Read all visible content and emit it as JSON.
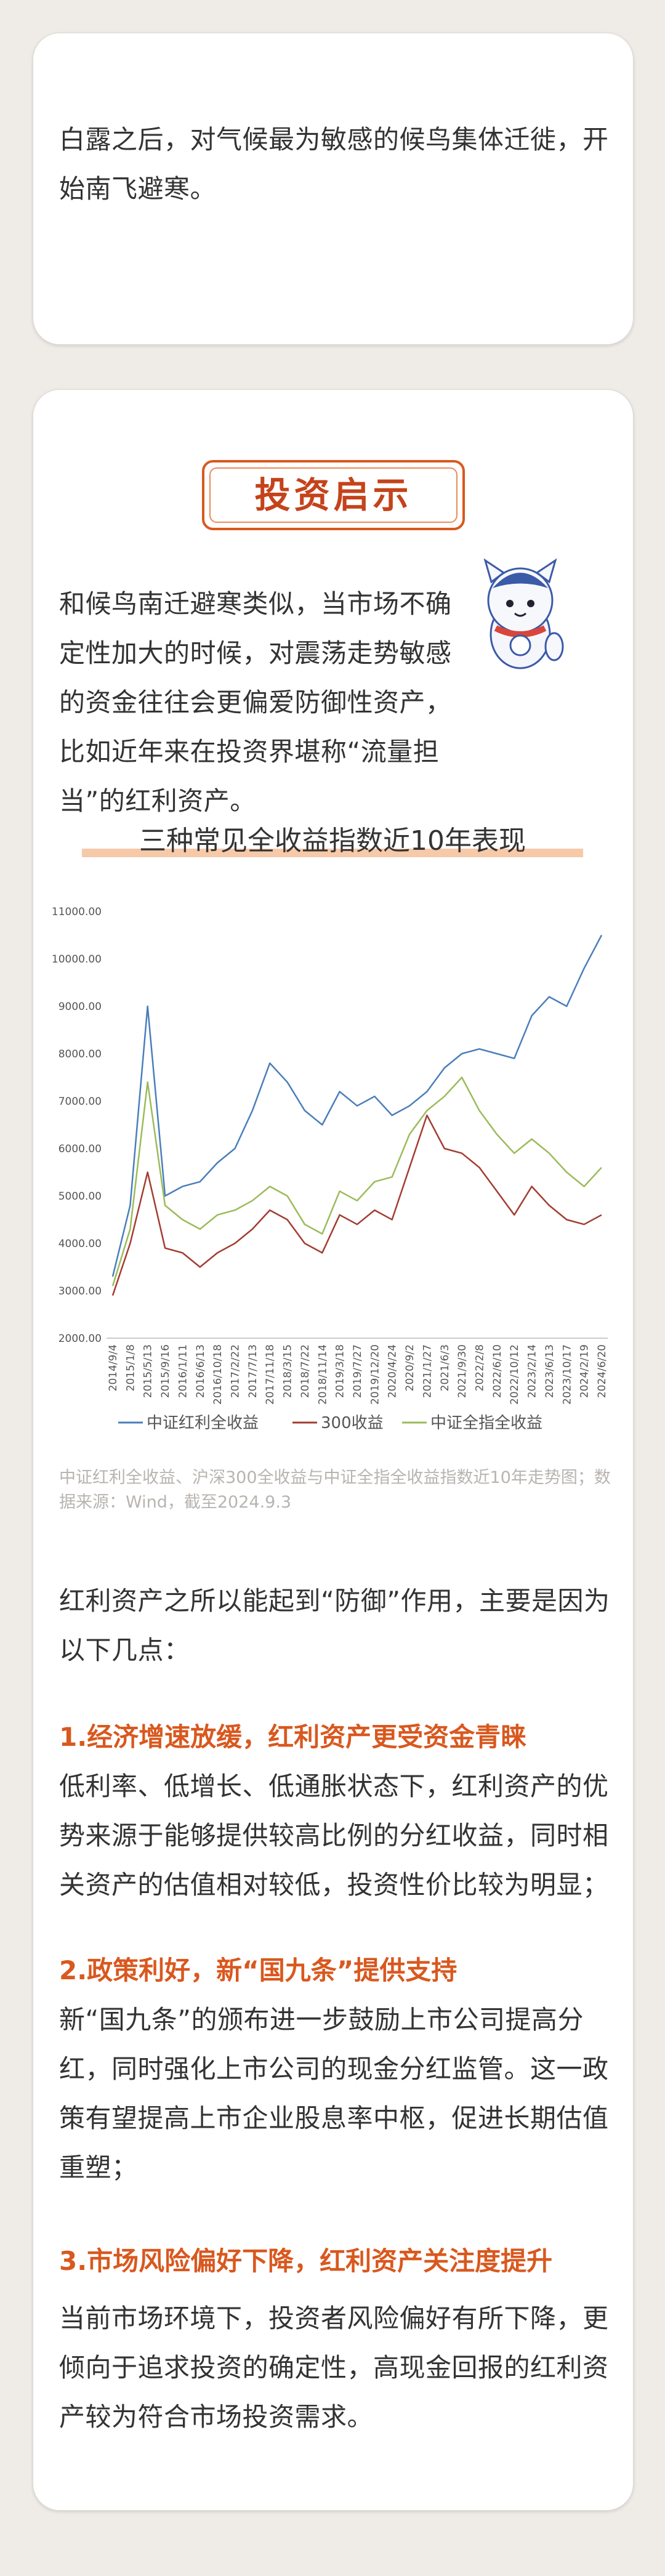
{
  "intro": {
    "text": "白露之后，对气候最为敏感的候鸟集体迁徙，开始南飞避寒。"
  },
  "section": {
    "badge": "投资启示",
    "paragraph": "和候鸟南迁避寒类似，当市场不确定性加大的时候，对震荡走势敏感的资金往往会更偏爱防御性资产，比如近年来在投资界堪称“流量担当”的红利资产。",
    "caption": "中证红利全收益、沪深300全收益与中证全指全收益指数近10年走势图；数据来源：Wind，截至2024.9.3",
    "lead": "红利资产之所以能起到“防御”作用，主要是因为以下几点：",
    "points": [
      {
        "heading": "1.经济增速放缓，红利资产更受资金青睐",
        "text": "低利率、低增长、低通胀状态下，红利资产的优势来源于能够提供较高比例的分红收益，同时相关资产的估值相对较低，投资性价比较为明显；"
      },
      {
        "heading": "2.政策利好，新“国九条”提供支持",
        "text": "新“国九条”的颁布进一步鼓励上市公司提高分红，同时强化上市公司的现金分红监管。这一政策有望提高上市企业股息率中枢，促进长期估值重塑；"
      },
      {
        "heading": "3.市场风险偏好下降，红利资产关注度提升",
        "text": "当前市场环境下，投资者风险偏好有所下降，更倾向于追求投资的确定性，高现金回报的红利资产较为符合市场投资需求。"
      }
    ]
  },
  "chart_data": {
    "type": "line",
    "title": "三种常见全收益指数近10年表现",
    "categories": [
      "2014/9/4",
      "2015/1/8",
      "2015/5/13",
      "2015/9/16",
      "2016/1/11",
      "2016/6/13",
      "2016/10/18",
      "2017/2/22",
      "2017/7/13",
      "2017/11/18",
      "2018/3/15",
      "2018/7/22",
      "2018/11/14",
      "2019/3/18",
      "2019/7/27",
      "2019/12/20",
      "2020/4/24",
      "2020/9/2",
      "2021/1/27",
      "2021/6/3",
      "2021/9/30",
      "2022/2/8",
      "2022/6/10",
      "2022/10/12",
      "2023/2/14",
      "2023/6/13",
      "2023/10/17",
      "2024/2/19",
      "2024/6/20"
    ],
    "series": [
      {
        "name": "中证红利全收益",
        "color": "#4a7ebb",
        "values": [
          3300,
          4800,
          9000,
          5000,
          5200,
          5300,
          5700,
          6000,
          6800,
          7800,
          7400,
          6800,
          6500,
          7200,
          6900,
          7100,
          6700,
          6900,
          7200,
          7700,
          8000,
          8100,
          8000,
          7900,
          8800,
          9200,
          9000,
          9800,
          10500
        ]
      },
      {
        "name": "300收益",
        "color": "#a33c32",
        "values": [
          2900,
          4000,
          5500,
          3900,
          3800,
          3500,
          3800,
          4000,
          4300,
          4700,
          4500,
          4000,
          3800,
          4600,
          4400,
          4700,
          4500,
          5600,
          6700,
          6000,
          5900,
          5600,
          5100,
          4600,
          5200,
          4800,
          4500,
          4400,
          4600
        ]
      },
      {
        "name": "中证全指全收益",
        "color": "#9bbb59",
        "values": [
          3100,
          4300,
          7400,
          4800,
          4500,
          4300,
          4600,
          4700,
          4900,
          5200,
          5000,
          4400,
          4200,
          5100,
          4900,
          5300,
          5400,
          6300,
          6800,
          7100,
          7500,
          6800,
          6300,
          5900,
          6200,
          5900,
          5500,
          5200,
          5600
        ]
      }
    ],
    "ylim": [
      2000,
      11000
    ],
    "yticks": [
      {
        "value": 2000,
        "label": "2000.00"
      },
      {
        "value": 3000,
        "label": "3000.00"
      },
      {
        "value": 4000,
        "label": "4000.00"
      },
      {
        "value": 5000,
        "label": "5000.00"
      },
      {
        "value": 6000,
        "label": "6000.00"
      },
      {
        "value": 7000,
        "label": "7000.00"
      },
      {
        "value": 8000,
        "label": "8000.00"
      },
      {
        "value": 9000,
        "label": "9000.00"
      },
      {
        "value": 10000,
        "label": "10000.00"
      },
      {
        "value": 11000,
        "label": "11000.00"
      }
    ],
    "grid": false,
    "legend": "bottom"
  }
}
